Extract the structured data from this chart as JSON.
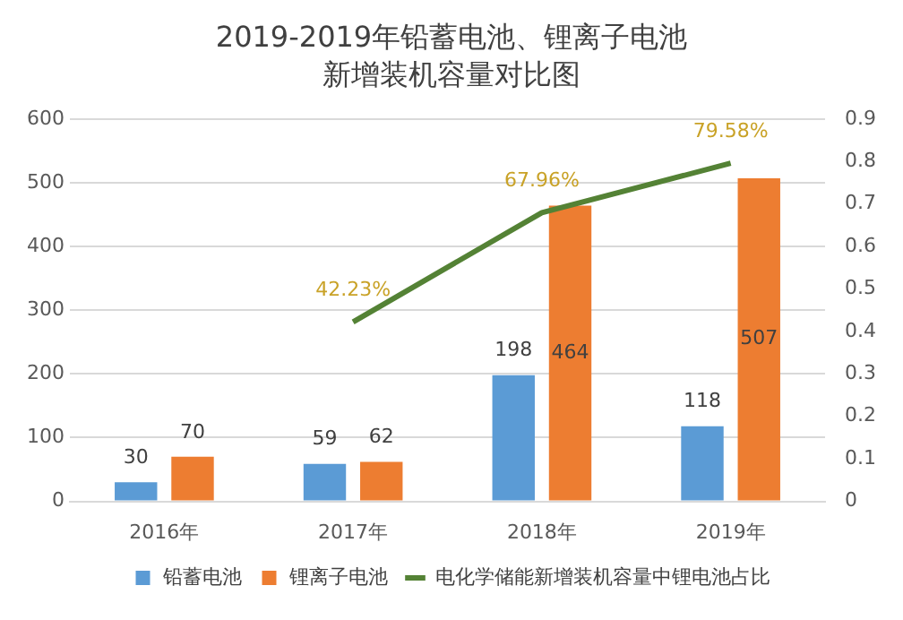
{
  "chart_data": {
    "type": "bar",
    "title": "2019-2019年铅蓄电池、锂离子电池",
    "subtitle": "新增装机容量对比图",
    "categories": [
      "2016年",
      "2017年",
      "2018年",
      "2019年"
    ],
    "series": [
      {
        "name": "铅蓄电池",
        "color": "#5b9bd5",
        "values": [
          30,
          59,
          198,
          118
        ]
      },
      {
        "name": "锂离子电池",
        "color": "#ed7d31",
        "values": [
          70,
          62,
          464,
          507
        ]
      },
      {
        "name": "电化学储能新增装机容量中锂电池占比",
        "type": "line",
        "axis": "y2",
        "color": "#548235",
        "values": [
          null,
          0.4223,
          0.6796,
          0.7958
        ],
        "value_labels": [
          null,
          "42.23%",
          "67.96%",
          "79.58%"
        ]
      }
    ],
    "ylim": [
      0,
      600
    ],
    "yticks": [
      0,
      100,
      200,
      300,
      400,
      500,
      600
    ],
    "y2lim": [
      0,
      0.9
    ],
    "y2ticks": [
      0,
      0.1,
      0.2,
      0.3,
      0.4,
      0.5,
      0.6,
      0.7,
      0.8,
      0.9
    ],
    "grid": "y",
    "legend": "bottom",
    "data_labels": true,
    "marker": "none"
  }
}
